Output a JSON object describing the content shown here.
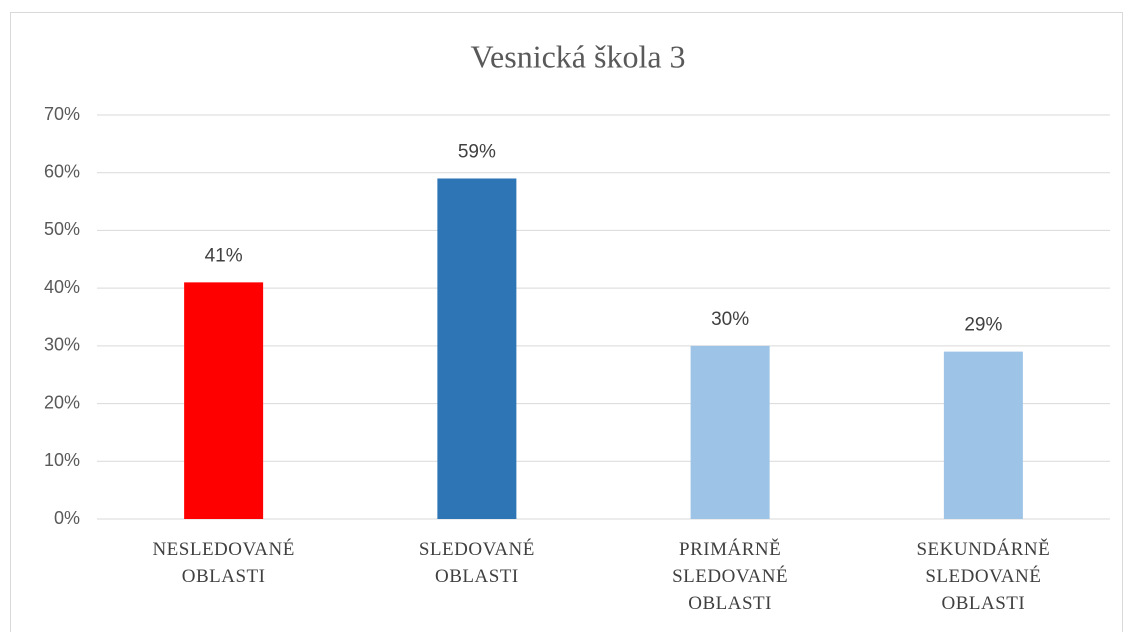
{
  "chart_data": {
    "type": "bar",
    "title": "Vesnická škola 3",
    "categories": [
      "NESLEDOVANÉ OBLASTI",
      "SLEDOVANÉ OBLASTI",
      "PRIMÁRNĚ SLEDOVANÉ OBLASTI",
      "SEKUNDÁRNĚ SLEDOVANÉ OBLASTI"
    ],
    "values": [
      41,
      59,
      30,
      29
    ],
    "value_labels": [
      "41%",
      "59%",
      "30%",
      "29%"
    ],
    "colors": [
      "#ff0000",
      "#2e75b6",
      "#9dc3e6",
      "#9dc3e6"
    ],
    "ylim": [
      0,
      70
    ],
    "yticks": [
      {
        "value": 0,
        "label": "0%"
      },
      {
        "value": 10,
        "label": "10%"
      },
      {
        "value": 20,
        "label": "20%"
      },
      {
        "value": 30,
        "label": "30%"
      },
      {
        "value": 40,
        "label": "40%"
      },
      {
        "value": 50,
        "label": "50%"
      },
      {
        "value": 60,
        "label": "60%"
      },
      {
        "value": 70,
        "label": "70%"
      }
    ],
    "grid": true
  }
}
